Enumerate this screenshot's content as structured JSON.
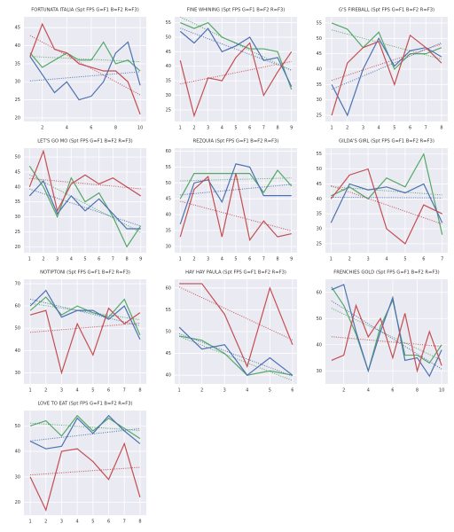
{
  "chart_data": [
    {
      "type": "line",
      "title": "FORTUNATA ITALIA (Spt FPS G=F1 B=F2 R=F3)",
      "x": [
        1,
        2,
        3,
        4,
        5,
        6,
        7,
        8,
        9,
        10
      ],
      "xlim": [
        0.5,
        10.5
      ],
      "xticks": [
        2,
        4,
        6,
        8,
        10
      ],
      "ylim": [
        19,
        48
      ],
      "yticks": [
        20,
        25,
        30,
        35,
        40,
        45
      ],
      "series": [
        {
          "color": "#55a868",
          "values": [
            38,
            34,
            36,
            38,
            36,
            36,
            41,
            35,
            36,
            33
          ]
        },
        {
          "color": "#4c72b0",
          "values": [
            37,
            32,
            27,
            30,
            25,
            26,
            30,
            38,
            41,
            29
          ]
        },
        {
          "color": "#c44e52",
          "values": [
            37,
            46,
            39,
            38,
            35,
            34,
            33,
            33,
            30,
            21
          ]
        }
      ]
    },
    {
      "type": "line",
      "title": "FINE WHINING (Spt FPS G=F1 B=F2 R=F3)",
      "x": [
        1,
        2,
        3,
        4,
        5,
        6,
        7,
        8,
        9
      ],
      "xlim": [
        0.6,
        9.4
      ],
      "xticks": [
        1,
        2,
        3,
        4,
        5,
        6,
        7,
        8,
        9
      ],
      "ylim": [
        21,
        57
      ],
      "yticks": [
        25,
        30,
        35,
        40,
        45,
        50,
        55
      ],
      "series": [
        {
          "color": "#55a868",
          "values": [
            55,
            53,
            55,
            50,
            48,
            46,
            46,
            45,
            32
          ]
        },
        {
          "color": "#4c72b0",
          "values": [
            52,
            48,
            53,
            45,
            47,
            50,
            42,
            43,
            33
          ]
        },
        {
          "color": "#c44e52",
          "values": [
            42,
            23,
            36,
            35,
            43,
            48,
            30,
            38,
            45
          ]
        }
      ]
    },
    {
      "type": "line",
      "title": "G'S FIREBALL (Spt FPS G=F1 B=F2 R=F3)",
      "x": [
        1,
        2,
        3,
        4,
        5,
        6,
        7,
        8
      ],
      "xlim": [
        0.6,
        8.4
      ],
      "xticks": [
        1,
        2,
        3,
        4,
        5,
        6,
        7,
        8
      ],
      "ylim": [
        23,
        57
      ],
      "yticks": [
        25,
        30,
        35,
        40,
        45,
        50,
        55
      ],
      "series": [
        {
          "color": "#55a868",
          "values": [
            55,
            53,
            47,
            52,
            40,
            45,
            45,
            47
          ]
        },
        {
          "color": "#4c72b0",
          "values": [
            35,
            25,
            40,
            50,
            41,
            46,
            47,
            44
          ]
        },
        {
          "color": "#c44e52",
          "values": [
            25,
            42,
            47,
            49,
            35,
            51,
            47,
            42
          ]
        }
      ]
    },
    {
      "type": "line",
      "title": "LET'S GO MO (Spt FPS G=F1 B=F2 R=F3)",
      "x": [
        1,
        2,
        3,
        4,
        5,
        6,
        7,
        8,
        9
      ],
      "xlim": [
        0.6,
        9.4
      ],
      "xticks": [
        1,
        2,
        3,
        4,
        5,
        6,
        7,
        8,
        9
      ],
      "ylim": [
        18,
        53
      ],
      "yticks": [
        20,
        25,
        30,
        35,
        40,
        45,
        50
      ],
      "series": [
        {
          "color": "#55a868",
          "values": [
            47,
            40,
            30,
            43,
            35,
            38,
            30,
            20,
            27
          ]
        },
        {
          "color": "#4c72b0",
          "values": [
            37,
            42,
            31,
            37,
            32,
            36,
            31,
            26,
            26
          ]
        },
        {
          "color": "#c44e52",
          "values": [
            40,
            52,
            32,
            41,
            44,
            41,
            43,
            40,
            37
          ]
        }
      ]
    },
    {
      "type": "line",
      "title": "REZQUIA (Spt FPS G=F1 B=F2 R=F3)",
      "x": [
        1,
        2,
        3,
        4,
        5,
        6,
        7,
        8,
        9
      ],
      "xlim": [
        0.6,
        9.4
      ],
      "xticks": [
        1,
        2,
        3,
        4,
        5,
        6,
        7,
        8,
        9
      ],
      "ylim": [
        28,
        61
      ],
      "yticks": [
        30,
        35,
        40,
        45,
        50,
        55,
        60
      ],
      "series": [
        {
          "color": "#55a868",
          "values": [
            45,
            53,
            53,
            53,
            53,
            53,
            47,
            54,
            49
          ]
        },
        {
          "color": "#4c72b0",
          "values": [
            37,
            50,
            51,
            44,
            56,
            55,
            46,
            46,
            46
          ]
        },
        {
          "color": "#c44e52",
          "values": [
            33,
            48,
            52,
            33,
            53,
            32,
            38,
            33,
            34
          ]
        }
      ]
    },
    {
      "type": "line",
      "title": "GILDA'S GIRL (Spt FPS G=F1 B=F2 R=F3)",
      "x": [
        1,
        2,
        3,
        4,
        5,
        6,
        7
      ],
      "xlim": [
        0.7,
        7.3
      ],
      "xticks": [
        1,
        2,
        3,
        4,
        5,
        6,
        7
      ],
      "ylim": [
        22,
        57
      ],
      "yticks": [
        25,
        30,
        35,
        40,
        45,
        50,
        55
      ],
      "series": [
        {
          "color": "#55a868",
          "values": [
            41,
            44,
            40,
            47,
            44,
            55,
            28
          ]
        },
        {
          "color": "#4c72b0",
          "values": [
            32,
            45,
            43,
            44,
            42,
            45,
            32
          ]
        },
        {
          "color": "#c44e52",
          "values": [
            40,
            48,
            50,
            30,
            25,
            38,
            35
          ]
        }
      ]
    },
    {
      "type": "line",
      "title": "NOTIPTONI (Spt FPS G=F1 B=F2 R=F3)",
      "x": [
        1,
        2,
        3,
        4,
        5,
        6,
        7,
        8
      ],
      "xlim": [
        0.6,
        8.4
      ],
      "xticks": [
        1,
        2,
        3,
        4,
        5,
        6,
        7,
        8
      ],
      "ylim": [
        25,
        72
      ],
      "yticks": [
        30,
        40,
        50,
        60,
        70
      ],
      "series": [
        {
          "color": "#55a868",
          "values": [
            58,
            64,
            56,
            60,
            57,
            55,
            63,
            47
          ]
        },
        {
          "color": "#4c72b0",
          "values": [
            60,
            67,
            55,
            58,
            58,
            54,
            60,
            45
          ]
        },
        {
          "color": "#c44e52",
          "values": [
            56,
            58,
            30,
            52,
            38,
            59,
            52,
            57
          ]
        }
      ]
    },
    {
      "type": "line",
      "title": "HAY HAY PAULA (Spt FPS G=F1 B=F2 R=F3)",
      "x": [
        1,
        2,
        3,
        4,
        5,
        6
      ],
      "xlim": [
        0.8,
        6.2
      ],
      "xticks": [
        1,
        2,
        3,
        4,
        5,
        6
      ],
      "ylim": [
        38,
        62
      ],
      "yticks": [
        40,
        45,
        50,
        55,
        60
      ],
      "series": [
        {
          "color": "#55a868",
          "values": [
            49,
            48,
            45,
            40,
            41,
            40
          ]
        },
        {
          "color": "#4c72b0",
          "values": [
            51,
            46,
            47,
            40,
            44,
            40
          ]
        },
        {
          "color": "#c44e52",
          "values": [
            61,
            61,
            54,
            42,
            60,
            47
          ]
        }
      ]
    },
    {
      "type": "line",
      "title": "FRENCHIES GOLD (Spt FPS G=F1 B=F2 R=F3)",
      "x": [
        1,
        2,
        3,
        4,
        5,
        6,
        7,
        8,
        9,
        10
      ],
      "xlim": [
        0.5,
        10.5
      ],
      "xticks": [
        2,
        4,
        6,
        8,
        10
      ],
      "ylim": [
        25,
        65
      ],
      "yticks": [
        30,
        40,
        50,
        60
      ],
      "series": [
        {
          "color": "#55a868",
          "values": [
            62,
            55,
            44,
            30,
            47,
            57,
            36,
            36,
            33,
            40
          ]
        },
        {
          "color": "#4c72b0",
          "values": [
            61,
            63,
            45,
            30,
            45,
            58,
            34,
            35,
            28,
            38
          ]
        },
        {
          "color": "#c44e52",
          "values": [
            34,
            36,
            55,
            43,
            50,
            35,
            52,
            30,
            45,
            32
          ]
        }
      ]
    },
    {
      "type": "line",
      "title": "LOVE TO EAT (Spt FPS G=F1 B=F2 R=F3)",
      "x": [
        1,
        2,
        3,
        4,
        5,
        6,
        7,
        8
      ],
      "xlim": [
        0.6,
        8.4
      ],
      "xticks": [
        1,
        2,
        3,
        4,
        5,
        6,
        7,
        8
      ],
      "ylim": [
        15,
        56
      ],
      "yticks": [
        20,
        30,
        40,
        50
      ],
      "series": [
        {
          "color": "#55a868",
          "values": [
            50,
            52,
            46,
            54,
            48,
            53,
            49,
            45
          ]
        },
        {
          "color": "#4c72b0",
          "values": [
            44,
            41,
            42,
            53,
            47,
            54,
            48,
            43
          ]
        },
        {
          "color": "#c44e52",
          "values": [
            30,
            17,
            40,
            41,
            36,
            29,
            43,
            22
          ]
        }
      ]
    }
  ]
}
